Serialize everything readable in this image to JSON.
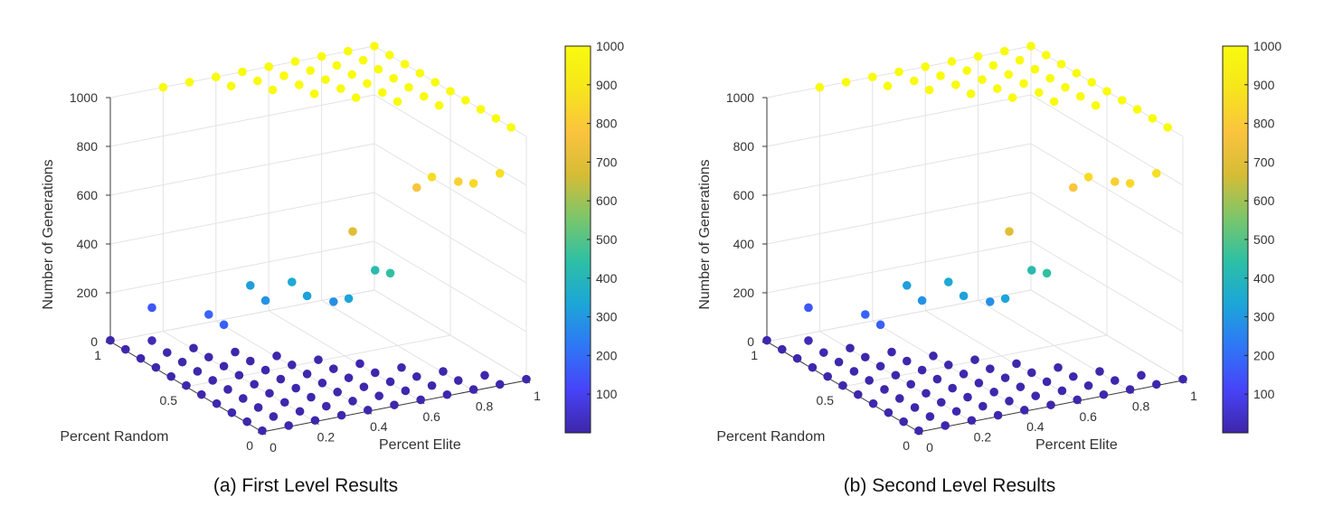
{
  "captions": {
    "a": "(a) First Level Results",
    "b": "(b) Second Level Results"
  },
  "colors": {
    "grid": "#e3e3e3",
    "axis": "#3a3a3a",
    "tick_text": "#333333",
    "colormap": [
      "#3e26a8",
      "#4743f8",
      "#2f76f6",
      "#1ca6d8",
      "#2dc0a4",
      "#7bc66a",
      "#d6bc36",
      "#fbc33e",
      "#f6e51c",
      "#f9fb0e"
    ]
  },
  "chart_data": [
    {
      "type": "scatter3d",
      "title": "",
      "xlabel": "Percent Elite",
      "ylabel": "Percent Random",
      "zlabel": "Number of Generations",
      "xlim": [
        0,
        1
      ],
      "ylim": [
        0,
        1
      ],
      "zlim": [
        0,
        1000
      ],
      "xticks": [
        "0",
        "0.2",
        "0.4",
        "0.6",
        "0.8",
        "1"
      ],
      "yticks": [
        "0",
        "0.5",
        "1"
      ],
      "zticks": [
        "0",
        "200",
        "400",
        "600",
        "800",
        "1000"
      ],
      "colorbar": {
        "range": [
          0,
          1000
        ],
        "ticks": [
          "100",
          "200",
          "300",
          "400",
          "500",
          "600",
          "700",
          "800",
          "900",
          "1000"
        ]
      },
      "grid": true,
      "points": [
        [
          0.0,
          1.0,
          5
        ],
        [
          0.0,
          0.9,
          5
        ],
        [
          0.0,
          0.8,
          5
        ],
        [
          0.0,
          0.7,
          5
        ],
        [
          0.0,
          0.6,
          5
        ],
        [
          0.0,
          0.5,
          5
        ],
        [
          0.0,
          0.4,
          5
        ],
        [
          0.0,
          0.3,
          5
        ],
        [
          0.0,
          0.2,
          5
        ],
        [
          0.0,
          0.1,
          5
        ],
        [
          0.0,
          0.0,
          5
        ],
        [
          0.1,
          0.9,
          20
        ],
        [
          0.1,
          0.8,
          8
        ],
        [
          0.1,
          0.7,
          6
        ],
        [
          0.1,
          0.6,
          5
        ],
        [
          0.1,
          0.5,
          5
        ],
        [
          0.1,
          0.4,
          5
        ],
        [
          0.1,
          0.3,
          5
        ],
        [
          0.1,
          0.2,
          5
        ],
        [
          0.1,
          0.1,
          5
        ],
        [
          0.1,
          0.0,
          5
        ],
        [
          0.2,
          0.8,
          5
        ],
        [
          0.2,
          0.7,
          5
        ],
        [
          0.2,
          0.6,
          5
        ],
        [
          0.2,
          0.5,
          5
        ],
        [
          0.2,
          0.4,
          5
        ],
        [
          0.2,
          0.3,
          5
        ],
        [
          0.2,
          0.2,
          5
        ],
        [
          0.2,
          0.1,
          5
        ],
        [
          0.2,
          0.0,
          5
        ],
        [
          0.3,
          0.7,
          5
        ],
        [
          0.3,
          0.6,
          5
        ],
        [
          0.3,
          0.5,
          5
        ],
        [
          0.3,
          0.4,
          5
        ],
        [
          0.3,
          0.3,
          5
        ],
        [
          0.3,
          0.2,
          5
        ],
        [
          0.3,
          0.1,
          5
        ],
        [
          0.3,
          0.0,
          5
        ],
        [
          0.4,
          0.6,
          5
        ],
        [
          0.4,
          0.5,
          5
        ],
        [
          0.4,
          0.4,
          5
        ],
        [
          0.4,
          0.3,
          5
        ],
        [
          0.4,
          0.2,
          5
        ],
        [
          0.4,
          0.1,
          5
        ],
        [
          0.4,
          0.0,
          5
        ],
        [
          0.5,
          0.5,
          5
        ],
        [
          0.5,
          0.4,
          5
        ],
        [
          0.5,
          0.3,
          5
        ],
        [
          0.5,
          0.2,
          5
        ],
        [
          0.5,
          0.1,
          5
        ],
        [
          0.5,
          0.0,
          5
        ],
        [
          0.6,
          0.4,
          5
        ],
        [
          0.6,
          0.3,
          5
        ],
        [
          0.6,
          0.2,
          5
        ],
        [
          0.6,
          0.1,
          5
        ],
        [
          0.6,
          0.0,
          5
        ],
        [
          0.7,
          0.3,
          5
        ],
        [
          0.7,
          0.2,
          5
        ],
        [
          0.7,
          0.1,
          5
        ],
        [
          0.7,
          0.0,
          5
        ],
        [
          0.8,
          0.2,
          5
        ],
        [
          0.8,
          0.1,
          5
        ],
        [
          0.8,
          0.0,
          5
        ],
        [
          0.9,
          0.1,
          5
        ],
        [
          0.9,
          0.0,
          5
        ],
        [
          1.0,
          0.0,
          5
        ],
        [
          0.1,
          0.9,
          155
        ],
        [
          0.2,
          0.7,
          180
        ],
        [
          0.2,
          0.6,
          175
        ],
        [
          0.3,
          0.6,
          315
        ],
        [
          0.3,
          0.5,
          290
        ],
        [
          0.4,
          0.5,
          345
        ],
        [
          0.4,
          0.4,
          325
        ],
        [
          0.5,
          0.4,
          280
        ],
        [
          0.5,
          0.3,
          330
        ],
        [
          0.6,
          0.3,
          425
        ],
        [
          0.6,
          0.2,
          450
        ],
        [
          0.7,
          0.2,
          780
        ],
        [
          0.7,
          0.1,
          860
        ],
        [
          0.8,
          0.1,
          820
        ],
        [
          0.9,
          0.0,
          870
        ],
        [
          0.8,
          0.0,
          850
        ],
        [
          0.2,
          1.0,
          1000
        ],
        [
          0.3,
          1.0,
          1000
        ],
        [
          0.4,
          1.0,
          1000
        ],
        [
          0.4,
          0.9,
          1000
        ],
        [
          0.5,
          1.0,
          1000
        ],
        [
          0.5,
          0.9,
          1000
        ],
        [
          0.5,
          0.8,
          1000
        ],
        [
          0.6,
          1.0,
          1000
        ],
        [
          0.6,
          0.9,
          1000
        ],
        [
          0.6,
          0.8,
          1000
        ],
        [
          0.6,
          0.7,
          1000
        ],
        [
          0.7,
          1.0,
          1000
        ],
        [
          0.7,
          0.9,
          1000
        ],
        [
          0.7,
          0.8,
          1000
        ],
        [
          0.7,
          0.7,
          1000
        ],
        [
          0.7,
          0.6,
          1000
        ],
        [
          0.8,
          1.0,
          1000
        ],
        [
          0.8,
          0.9,
          1000
        ],
        [
          0.8,
          0.8,
          1000
        ],
        [
          0.8,
          0.7,
          1000
        ],
        [
          0.8,
          0.6,
          1000
        ],
        [
          0.8,
          0.5,
          1000
        ],
        [
          0.9,
          1.0,
          1000
        ],
        [
          0.9,
          0.9,
          1000
        ],
        [
          0.9,
          0.8,
          1000
        ],
        [
          0.9,
          0.7,
          1000
        ],
        [
          0.9,
          0.6,
          1000
        ],
        [
          0.9,
          0.5,
          1000
        ],
        [
          0.9,
          0.4,
          1000
        ],
        [
          1.0,
          1.0,
          1000
        ],
        [
          1.0,
          0.9,
          1000
        ],
        [
          1.0,
          0.8,
          1000
        ],
        [
          1.0,
          0.7,
          1000
        ],
        [
          1.0,
          0.6,
          1000
        ],
        [
          1.0,
          0.5,
          1000
        ],
        [
          1.0,
          0.4,
          1000
        ],
        [
          1.0,
          0.3,
          1000
        ],
        [
          1.0,
          0.2,
          1000
        ],
        [
          1.0,
          0.1,
          1000
        ],
        [
          0.4,
          0.1,
          700
        ]
      ]
    },
    {
      "type": "scatter3d",
      "title": "",
      "xlabel": "Percent Elite",
      "ylabel": "Percent Random",
      "zlabel": "Number of Generations",
      "xlim": [
        0,
        1
      ],
      "ylim": [
        0,
        1
      ],
      "zlim": [
        0,
        1000
      ],
      "xticks": [
        "0",
        "0.2",
        "0.4",
        "0.6",
        "0.8",
        "1"
      ],
      "yticks": [
        "0",
        "0.5",
        "1"
      ],
      "zticks": [
        "0",
        "200",
        "400",
        "600",
        "800",
        "1000"
      ],
      "colorbar": {
        "range": [
          0,
          1000
        ],
        "ticks": [
          "100",
          "200",
          "300",
          "400",
          "500",
          "600",
          "700",
          "800",
          "900",
          "1000"
        ]
      },
      "grid": true,
      "points": [
        [
          0.0,
          1.0,
          5
        ],
        [
          0.0,
          0.9,
          5
        ],
        [
          0.0,
          0.8,
          5
        ],
        [
          0.0,
          0.7,
          5
        ],
        [
          0.0,
          0.6,
          5
        ],
        [
          0.0,
          0.5,
          5
        ],
        [
          0.0,
          0.4,
          5
        ],
        [
          0.0,
          0.3,
          5
        ],
        [
          0.0,
          0.2,
          5
        ],
        [
          0.0,
          0.1,
          5
        ],
        [
          0.0,
          0.0,
          5
        ],
        [
          0.1,
          0.9,
          20
        ],
        [
          0.1,
          0.8,
          8
        ],
        [
          0.1,
          0.7,
          6
        ],
        [
          0.1,
          0.6,
          5
        ],
        [
          0.1,
          0.5,
          5
        ],
        [
          0.1,
          0.4,
          5
        ],
        [
          0.1,
          0.3,
          5
        ],
        [
          0.1,
          0.2,
          5
        ],
        [
          0.1,
          0.1,
          5
        ],
        [
          0.1,
          0.0,
          5
        ],
        [
          0.2,
          0.8,
          5
        ],
        [
          0.2,
          0.7,
          5
        ],
        [
          0.2,
          0.6,
          5
        ],
        [
          0.2,
          0.5,
          5
        ],
        [
          0.2,
          0.4,
          5
        ],
        [
          0.2,
          0.3,
          5
        ],
        [
          0.2,
          0.2,
          5
        ],
        [
          0.2,
          0.1,
          5
        ],
        [
          0.2,
          0.0,
          5
        ],
        [
          0.3,
          0.7,
          5
        ],
        [
          0.3,
          0.6,
          5
        ],
        [
          0.3,
          0.5,
          5
        ],
        [
          0.3,
          0.4,
          5
        ],
        [
          0.3,
          0.3,
          5
        ],
        [
          0.3,
          0.2,
          5
        ],
        [
          0.3,
          0.1,
          5
        ],
        [
          0.3,
          0.0,
          5
        ],
        [
          0.4,
          0.6,
          5
        ],
        [
          0.4,
          0.5,
          5
        ],
        [
          0.4,
          0.4,
          5
        ],
        [
          0.4,
          0.3,
          5
        ],
        [
          0.4,
          0.2,
          5
        ],
        [
          0.4,
          0.1,
          5
        ],
        [
          0.4,
          0.0,
          5
        ],
        [
          0.5,
          0.5,
          5
        ],
        [
          0.5,
          0.4,
          5
        ],
        [
          0.5,
          0.3,
          5
        ],
        [
          0.5,
          0.2,
          5
        ],
        [
          0.5,
          0.1,
          5
        ],
        [
          0.5,
          0.0,
          5
        ],
        [
          0.6,
          0.4,
          5
        ],
        [
          0.6,
          0.3,
          5
        ],
        [
          0.6,
          0.2,
          5
        ],
        [
          0.6,
          0.1,
          5
        ],
        [
          0.6,
          0.0,
          5
        ],
        [
          0.7,
          0.3,
          5
        ],
        [
          0.7,
          0.2,
          5
        ],
        [
          0.7,
          0.1,
          5
        ],
        [
          0.7,
          0.0,
          5
        ],
        [
          0.8,
          0.2,
          5
        ],
        [
          0.8,
          0.1,
          5
        ],
        [
          0.8,
          0.0,
          5
        ],
        [
          0.9,
          0.1,
          5
        ],
        [
          0.9,
          0.0,
          5
        ],
        [
          1.0,
          0.0,
          5
        ],
        [
          0.1,
          0.9,
          155
        ],
        [
          0.2,
          0.7,
          180
        ],
        [
          0.2,
          0.6,
          175
        ],
        [
          0.3,
          0.6,
          315
        ],
        [
          0.3,
          0.5,
          290
        ],
        [
          0.4,
          0.5,
          345
        ],
        [
          0.4,
          0.4,
          325
        ],
        [
          0.5,
          0.4,
          280
        ],
        [
          0.5,
          0.3,
          330
        ],
        [
          0.6,
          0.3,
          425
        ],
        [
          0.6,
          0.2,
          450
        ],
        [
          0.7,
          0.2,
          780
        ],
        [
          0.7,
          0.1,
          860
        ],
        [
          0.8,
          0.1,
          820
        ],
        [
          0.9,
          0.0,
          870
        ],
        [
          0.8,
          0.0,
          850
        ],
        [
          0.2,
          1.0,
          1000
        ],
        [
          0.3,
          1.0,
          1000
        ],
        [
          0.4,
          1.0,
          1000
        ],
        [
          0.4,
          0.9,
          1000
        ],
        [
          0.5,
          1.0,
          1000
        ],
        [
          0.5,
          0.9,
          1000
        ],
        [
          0.5,
          0.8,
          1000
        ],
        [
          0.6,
          1.0,
          1000
        ],
        [
          0.6,
          0.9,
          1000
        ],
        [
          0.6,
          0.8,
          1000
        ],
        [
          0.6,
          0.7,
          1000
        ],
        [
          0.7,
          1.0,
          1000
        ],
        [
          0.7,
          0.9,
          1000
        ],
        [
          0.7,
          0.8,
          1000
        ],
        [
          0.7,
          0.7,
          1000
        ],
        [
          0.7,
          0.6,
          1000
        ],
        [
          0.8,
          1.0,
          1000
        ],
        [
          0.8,
          0.9,
          1000
        ],
        [
          0.8,
          0.8,
          1000
        ],
        [
          0.8,
          0.7,
          1000
        ],
        [
          0.8,
          0.6,
          1000
        ],
        [
          0.8,
          0.5,
          1000
        ],
        [
          0.9,
          1.0,
          1000
        ],
        [
          0.9,
          0.9,
          1000
        ],
        [
          0.9,
          0.8,
          1000
        ],
        [
          0.9,
          0.7,
          1000
        ],
        [
          0.9,
          0.6,
          1000
        ],
        [
          0.9,
          0.5,
          1000
        ],
        [
          0.9,
          0.4,
          1000
        ],
        [
          1.0,
          1.0,
          1000
        ],
        [
          1.0,
          0.9,
          1000
        ],
        [
          1.0,
          0.8,
          1000
        ],
        [
          1.0,
          0.7,
          1000
        ],
        [
          1.0,
          0.6,
          1000
        ],
        [
          1.0,
          0.5,
          1000
        ],
        [
          1.0,
          0.4,
          1000
        ],
        [
          1.0,
          0.3,
          1000
        ],
        [
          1.0,
          0.2,
          1000
        ],
        [
          1.0,
          0.1,
          1000
        ],
        [
          0.4,
          0.1,
          700
        ]
      ]
    }
  ]
}
